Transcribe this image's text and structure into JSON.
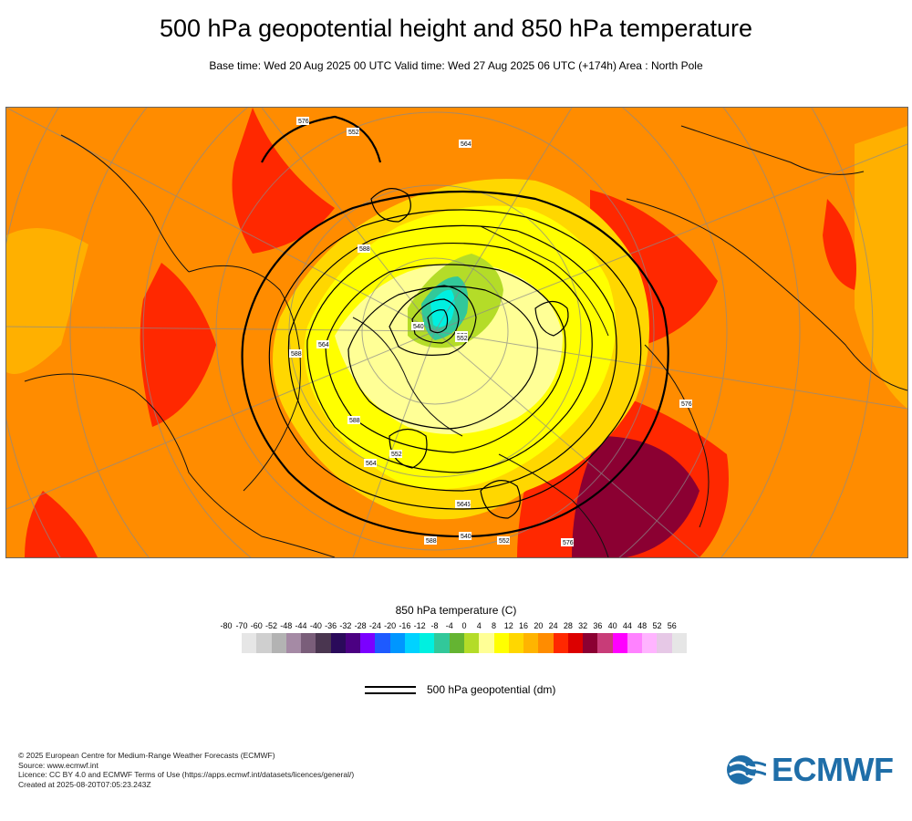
{
  "header": {
    "title": "500 hPa geopotential height and 850 hPa temperature",
    "subtitle": "Base time: Wed 20 Aug 2025 00 UTC Valid time: Wed 27 Aug 2025 06 UTC (+174h) Area : North Pole"
  },
  "map": {
    "contour_labels": [
      "552",
      "564",
      "576",
      "576",
      "588",
      "588",
      "564",
      "540",
      "528",
      "552",
      "576",
      "588",
      "564",
      "540",
      "552",
      "576",
      "588",
      "564",
      "552"
    ]
  },
  "legend": {
    "title": "850 hPa temperature (C)",
    "ticks": [
      "-80",
      "-70",
      "-60",
      "-52",
      "-48",
      "-44",
      "-40",
      "-36",
      "-32",
      "-28",
      "-24",
      "-20",
      "-16",
      "-12",
      "-8",
      "-4",
      "0",
      "4",
      "8",
      "12",
      "16",
      "20",
      "24",
      "28",
      "32",
      "36",
      "40",
      "44",
      "48",
      "52",
      "56"
    ],
    "colors": [
      "#e6e6e6",
      "#cfcfcf",
      "#b3b3b3",
      "#a58aa5",
      "#7a5e7a",
      "#4a3650",
      "#2a0a5a",
      "#4b0082",
      "#7b00ff",
      "#1e5aff",
      "#0096ff",
      "#00d2ff",
      "#00f0e0",
      "#32c89a",
      "#64b432",
      "#b4dc28",
      "#ffff96",
      "#ffff00",
      "#ffd700",
      "#ffb400",
      "#ff8c00",
      "#ff2800",
      "#dc0000",
      "#8b0032",
      "#c83c78",
      "#ff00ff",
      "#ff82ff",
      "#ffb4ff",
      "#e6c8e6",
      "#e6e6e6"
    ],
    "geopotential_label": "500 hPa geopotential (dm)"
  },
  "footer": {
    "line1": "© 2025 European Centre for Medium-Range Weather Forecasts (ECMWF)",
    "line2": "Source: www.ecmwf.int",
    "line3": "Licence: CC BY 4.0 and ECMWF Terms of Use (https://apps.ecmwf.int/datasets/licences/general/)",
    "line4": "Created at 2025-08-20T07:05:23.243Z"
  },
  "logo": {
    "text": "ECMWF",
    "color": "#1f6ea8"
  }
}
